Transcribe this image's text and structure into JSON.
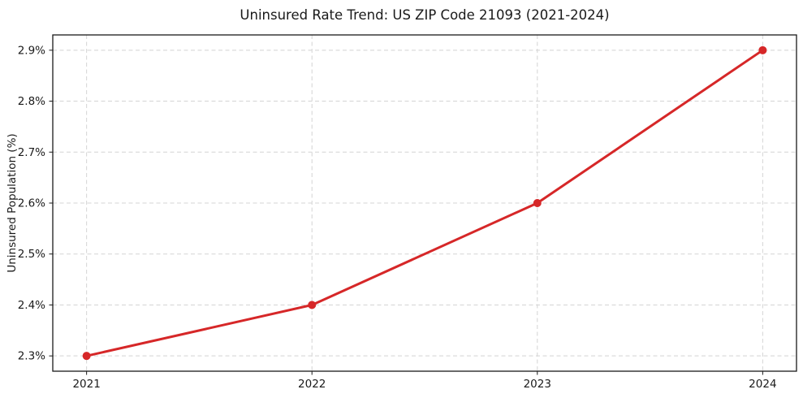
{
  "chart_data": {
    "type": "line",
    "title": "Uninsured Rate Trend: US ZIP Code 21093 (2021-2024)",
    "xlabel": "",
    "ylabel": "Uninsured Population (%)",
    "categories": [
      "2021",
      "2022",
      "2023",
      "2024"
    ],
    "series": [
      {
        "name": "Uninsured Population",
        "values": [
          2.3,
          2.4,
          2.6,
          2.9
        ]
      }
    ],
    "y_ticks": [
      2.3,
      2.4,
      2.5,
      2.6,
      2.7,
      2.8,
      2.9
    ],
    "y_tick_labels": [
      "2.3%",
      "2.4%",
      "2.5%",
      "2.6%",
      "2.7%",
      "2.8%",
      "2.9%"
    ],
    "ylim": [
      2.27,
      2.93
    ],
    "xlim": [
      -0.15,
      3.15
    ],
    "grid": true,
    "grid_style": "dashed",
    "legend_position": "none",
    "line_color": "#d62728",
    "marker": "circle",
    "grid_color": "#d4d4d4",
    "spine_color": "#1a1a1a",
    "background_color": "#ffffff"
  }
}
